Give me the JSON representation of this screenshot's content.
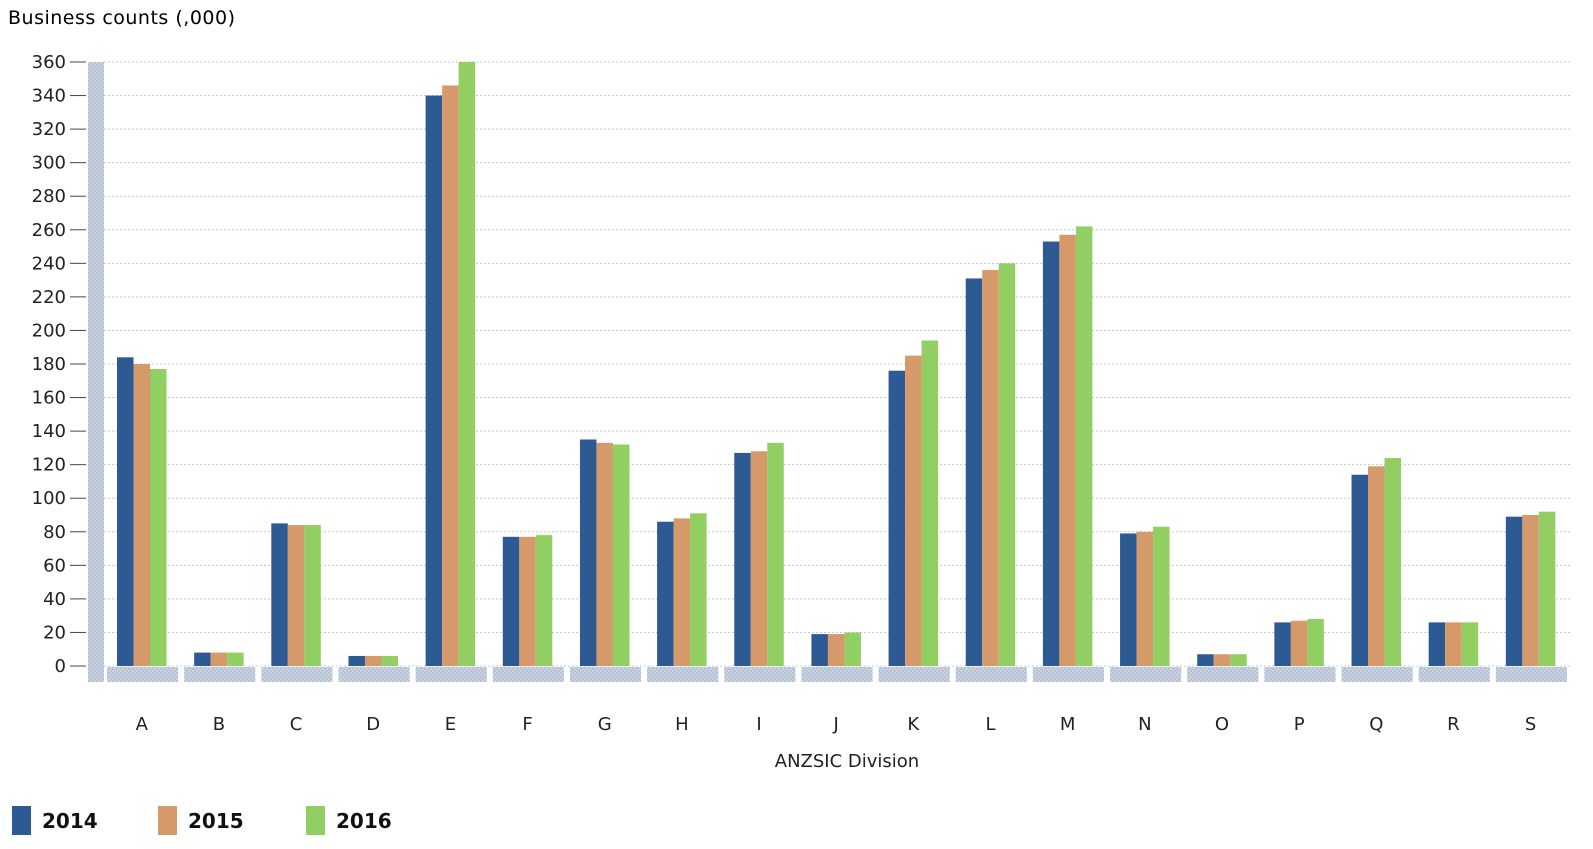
{
  "chart_data": {
    "type": "bar",
    "ylabel": "Business counts (,000)",
    "xlabel": "ANZSIC Division",
    "ylim": [
      0,
      360
    ],
    "y_ticks": [
      0,
      20,
      40,
      60,
      80,
      100,
      120,
      140,
      160,
      180,
      200,
      220,
      240,
      260,
      280,
      300,
      320,
      340,
      360
    ],
    "grid": true,
    "legend_position": "bottom-left",
    "categories": [
      "A",
      "B",
      "C",
      "D",
      "E",
      "F",
      "G",
      "H",
      "I",
      "J",
      "K",
      "L",
      "M",
      "N",
      "O",
      "P",
      "Q",
      "R",
      "S"
    ],
    "series": [
      {
        "name": "2014",
        "color": "#2e5a93",
        "values": [
          184,
          8,
          85,
          6,
          340,
          77,
          135,
          86,
          127,
          19,
          176,
          231,
          253,
          79,
          7,
          26,
          114,
          26,
          89
        ]
      },
      {
        "name": "2015",
        "color": "#d69a6a",
        "values": [
          180,
          8,
          84,
          6,
          346,
          77,
          133,
          88,
          128,
          19,
          185,
          236,
          257,
          80,
          7,
          27,
          119,
          26,
          90
        ]
      },
      {
        "name": "2016",
        "color": "#92cf62",
        "values": [
          177,
          8,
          84,
          6,
          360,
          78,
          132,
          91,
          133,
          20,
          194,
          240,
          262,
          83,
          7,
          28,
          124,
          26,
          92
        ]
      }
    ]
  }
}
